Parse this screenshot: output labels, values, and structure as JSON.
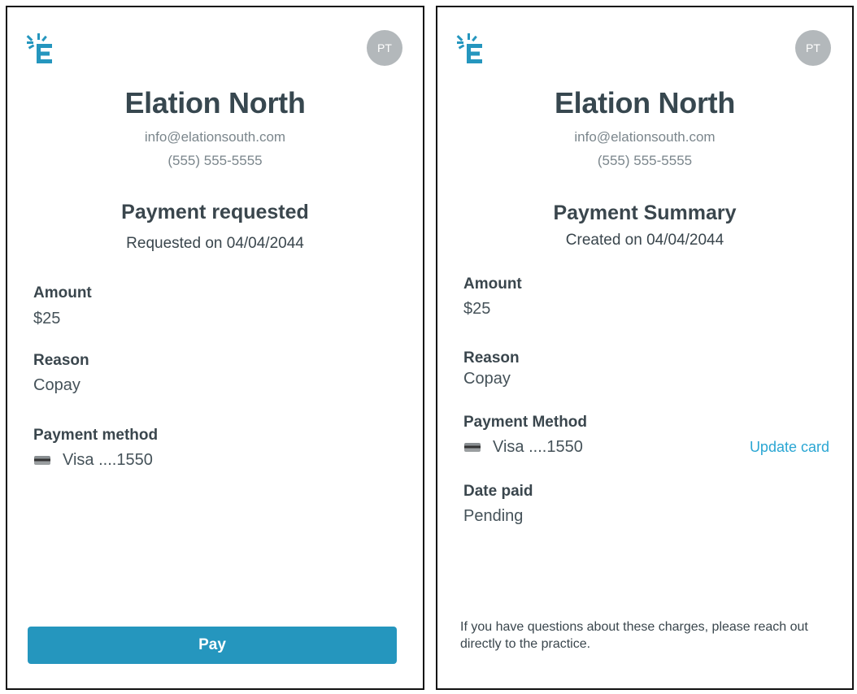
{
  "practice": {
    "name": "Elation North",
    "email": "info@elationsouth.com",
    "phone": "(555) 555-5555"
  },
  "avatar_initials": "PT",
  "colors": {
    "accent": "#2596be",
    "link": "#2aa6d3",
    "avatar": "#b3b8bb"
  },
  "left": {
    "heading": "Payment requested",
    "subheading": "Requested on 04/04/2044",
    "amount_label": "Amount",
    "amount": "$25",
    "reason_label": "Reason",
    "reason": "Copay",
    "method_label": "Payment method",
    "method": "Visa ....1550",
    "pay_button": "Pay"
  },
  "right": {
    "heading": "Payment Summary",
    "subheading": "Created on 04/04/2044",
    "amount_label": "Amount",
    "amount": "$25",
    "reason_label": "Reason",
    "reason": "Copay",
    "method_label": "Payment Method",
    "method": "Visa ....1550",
    "update_card": "Update card",
    "date_paid_label": "Date paid",
    "date_paid": "Pending",
    "footer": "If you have questions about these charges, please reach out directly to the practice."
  }
}
